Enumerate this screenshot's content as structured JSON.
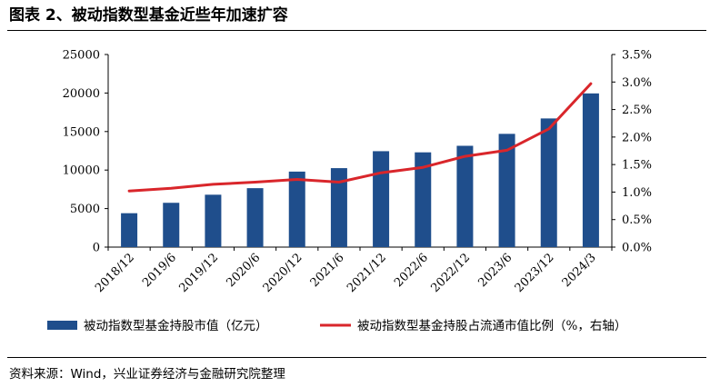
{
  "figure": {
    "title": "图表 2、被动指数型基金近些年加速扩容",
    "source": "资料来源：Wind，兴业证券经济与金融研究院整理"
  },
  "chart_data": {
    "type": "bar",
    "categories": [
      "2018/12",
      "2019/6",
      "2019/12",
      "2020/6",
      "2020/12",
      "2021/6",
      "2021/12",
      "2022/6",
      "2022/12",
      "2023/6",
      "2023/12",
      "2024/3"
    ],
    "series": [
      {
        "name": "被动指数型基金持股市值（亿元）",
        "type": "bar",
        "axis": "left",
        "color": "#1f4e8c",
        "values": [
          4400,
          5750,
          6800,
          7650,
          9800,
          10250,
          12450,
          12300,
          13150,
          14700,
          16700,
          19950
        ]
      },
      {
        "name": "被动指数型基金持股占流通市值比例（%，右轴）",
        "type": "line",
        "axis": "right",
        "color": "#d9262b",
        "values": [
          1.02,
          1.07,
          1.14,
          1.18,
          1.23,
          1.18,
          1.35,
          1.45,
          1.65,
          1.76,
          2.15,
          2.97
        ]
      }
    ],
    "y_left": {
      "ylim": [
        0,
        25000
      ],
      "ticks": [
        "0",
        "5000",
        "10000",
        "15000",
        "20000",
        "25000"
      ]
    },
    "y_right": {
      "ylim": [
        0,
        3.5
      ],
      "ticks": [
        "0.0%",
        "0.5%",
        "1.0%",
        "1.5%",
        "2.0%",
        "2.5%",
        "3.0%",
        "3.5%"
      ]
    },
    "legend_position": "bottom",
    "grid": false
  }
}
